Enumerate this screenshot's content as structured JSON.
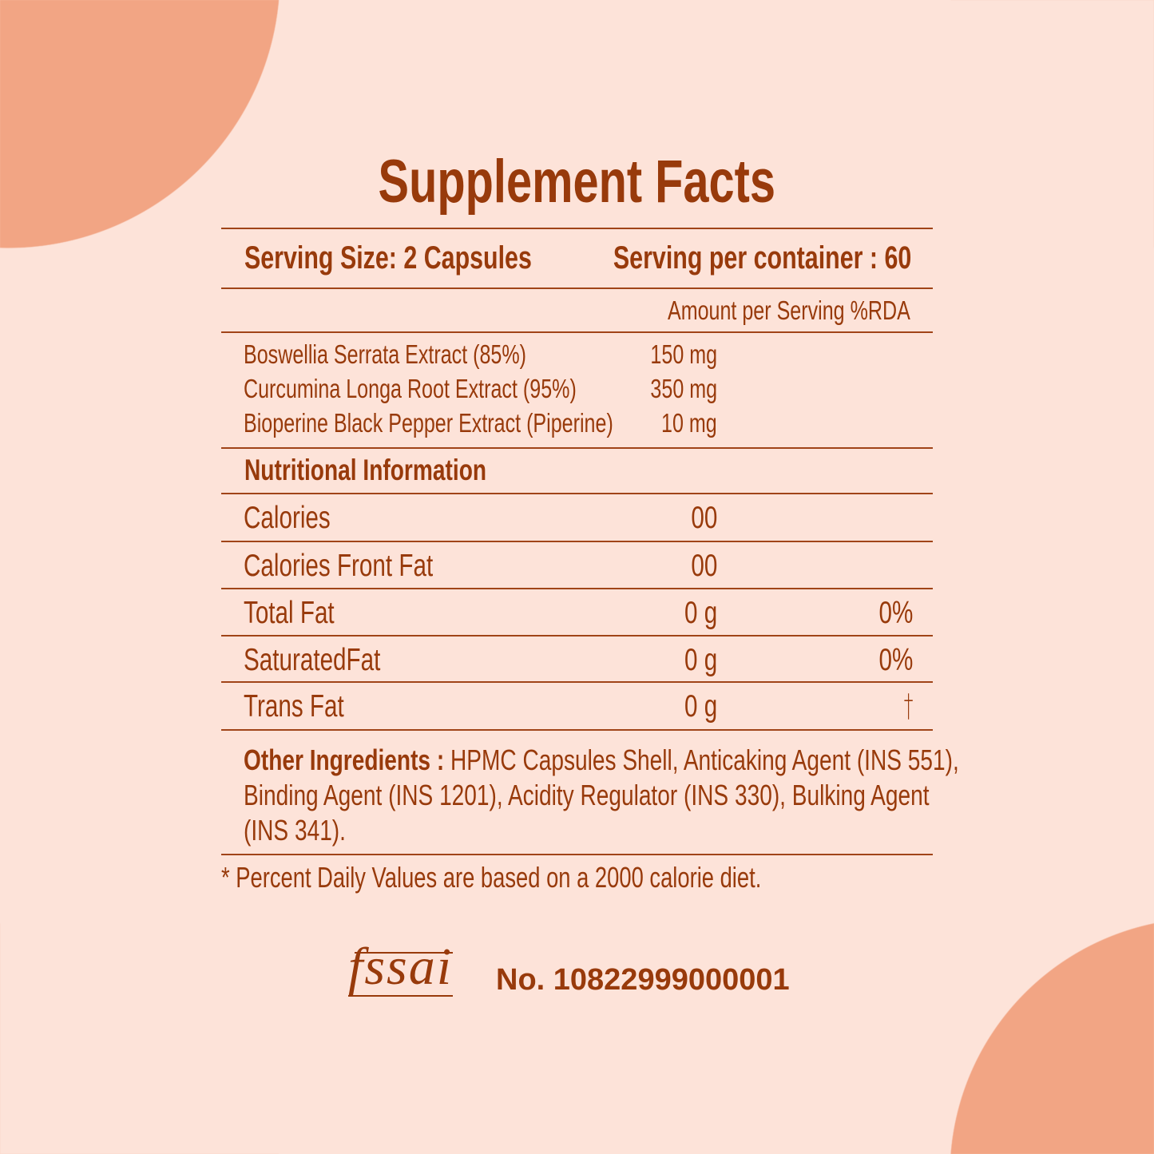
{
  "title": "Supplement Facts",
  "serving_size": "Serving Size: 2 Capsules",
  "servings_per_container": "Serving per container : 60",
  "column_header": "Amount per Serving %RDA",
  "ingredients": [
    {
      "name": "Boswellia Serrata Extract (85%)",
      "amount": "150 mg"
    },
    {
      "name": "Curcumina Longa Root Extract (95%)",
      "amount": "350 mg"
    },
    {
      "name": "Bioperine Black Pepper Extract (Piperine)",
      "amount": "10 mg"
    }
  ],
  "nutrition_heading": "Nutritional Information",
  "nutrition": [
    {
      "name": "Calories",
      "amount": "00",
      "rda": ""
    },
    {
      "name": "Calories Front Fat",
      "amount": "00",
      "rda": ""
    },
    {
      "name": "Total Fat",
      "amount": "0 g",
      "rda": "0%"
    },
    {
      "name": "SaturatedFat",
      "amount": "0 g",
      "rda": "0%"
    },
    {
      "name": "Trans Fat",
      "amount": "0 g",
      "rda": "†"
    }
  ],
  "other_ingredients_label": "Other Ingredients :",
  "other_ingredients_lines": [
    " HPMC Capsules Shell, Anticaking Agent (INS 551),",
    "Binding Agent (INS 1201), Acidity Regulator (INS 330), Bulking Agent",
    "(INS 341)."
  ],
  "footnote": "* Percent Daily Values are based on a 2000 calorie diet.",
  "fssai_logo_text": "fssai",
  "fssai_number": "No. 10822999000001",
  "colors": {
    "background": "#fde3d9",
    "accent": "#f2a584",
    "text": "#983a0b"
  }
}
